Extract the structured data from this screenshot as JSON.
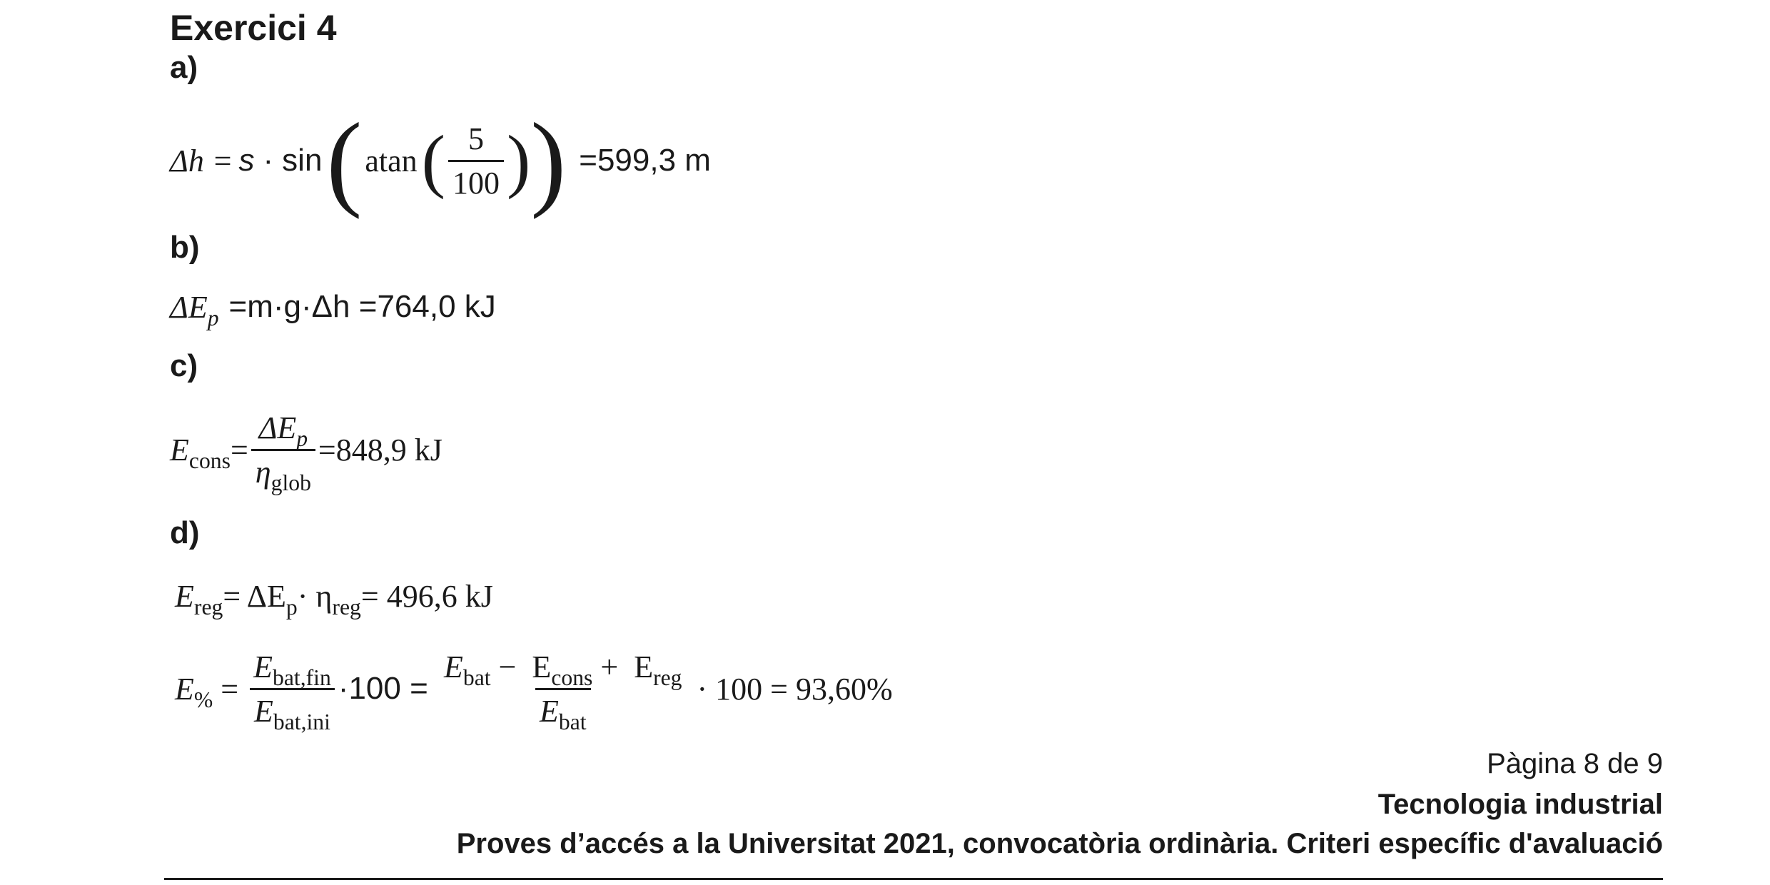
{
  "heading": "Exercici 4",
  "parts": {
    "a": "a)",
    "b": "b)",
    "c": "c)",
    "d": "d)"
  },
  "eq_a": {
    "lhs": "Δh =",
    "s": "s",
    "dot": "·",
    "sin": "sin",
    "atan": "atan",
    "num": "5",
    "den": "100",
    "result": "=599,3 m"
  },
  "eq_b": {
    "lhs": "ΔE",
    "lhs_sub": "p",
    "rhs": "=m·g·Δh =764,0 kJ"
  },
  "eq_c": {
    "lhs": "E",
    "lhs_sub": "cons",
    "eq": "=",
    "num": "ΔE",
    "num_sub": "p",
    "den": "η",
    "den_sub": "glob",
    "result": "=848,9 kJ"
  },
  "eq_d1": {
    "lhs": "E",
    "lhs_sub": "reg",
    "mid": " = ΔE",
    "mid_sub": "p",
    "mid2": " · η",
    "mid2_sub": "reg",
    "result": " = 496,6 kJ"
  },
  "eq_d2": {
    "lhs": "E",
    "lhs_sub": "%",
    "eq1": " = ",
    "f1_num": "E",
    "f1_num_sub": "bat,fin",
    "f1_den": "E",
    "f1_den_sub": "bat,ini",
    "mult1": "·100 = ",
    "f2_num_a": "E",
    "f2_num_a_sub": "bat",
    "f2_num_op1": " −  E",
    "f2_num_b_sub": "cons",
    "f2_num_op2": " +  E",
    "f2_num_c_sub": "reg",
    "f2_den": "E",
    "f2_den_sub": "bat",
    "result": " · 100 = 93,60%"
  },
  "footer": {
    "page": "Pàgina 8 de 9",
    "subject": "Tecnologia industrial",
    "exam": "Proves d’accés a la Universitat 2021, convocatòria ordinària. Criteri específic d'avaluació"
  }
}
